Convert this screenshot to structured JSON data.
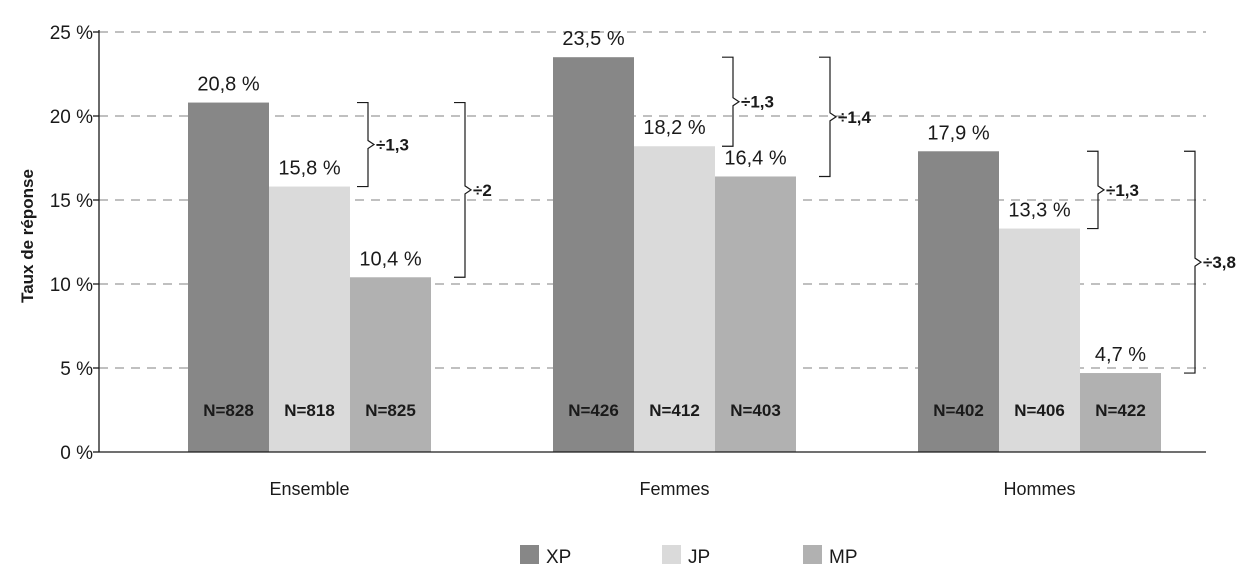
{
  "chart_data": {
    "type": "bar",
    "ylabel": "Taux de réponse",
    "ylim": [
      0,
      25
    ],
    "yticks": [
      0,
      5,
      10,
      15,
      20,
      25
    ],
    "ytick_labels": [
      "0 %",
      "5 %",
      "10 %",
      "15 %",
      "20 %",
      "25 %"
    ],
    "grid": true,
    "legend_position": "bottom",
    "categories": [
      "Ensemble",
      "Femmes",
      "Hommes"
    ],
    "series": [
      {
        "name": "XP",
        "color": "#878787",
        "values": [
          20.8,
          23.5,
          17.9
        ],
        "value_labels": [
          "20,8 %",
          "23,5 %",
          "17,9 %"
        ],
        "n_labels": [
          "N=828",
          "N=426",
          "N=402"
        ]
      },
      {
        "name": "JP",
        "color": "#dadada",
        "values": [
          15.8,
          18.2,
          13.3
        ],
        "value_labels": [
          "15,8 %",
          "18,2 %",
          "13,3 %"
        ],
        "n_labels": [
          "N=818",
          "N=412",
          "N=406"
        ]
      },
      {
        "name": "MP",
        "color": "#b1b1b1",
        "values": [
          10.4,
          16.4,
          4.7
        ],
        "value_labels": [
          "10,4 %",
          "16,4 %",
          "4,7 %"
        ],
        "n_labels": [
          "N=825",
          "N=403",
          "N=422"
        ]
      }
    ],
    "annotations": [
      {
        "category": 0,
        "from": 1,
        "to": 0,
        "label": "÷1,3"
      },
      {
        "category": 0,
        "from": 2,
        "to": 0,
        "label": "÷2"
      },
      {
        "category": 1,
        "from": 1,
        "to": 0,
        "label": "÷1,3"
      },
      {
        "category": 1,
        "from": 2,
        "to": 0,
        "label": "÷1,4"
      },
      {
        "category": 2,
        "from": 1,
        "to": 0,
        "label": "÷1,3"
      },
      {
        "category": 2,
        "from": 2,
        "to": 0,
        "label": "÷3,8"
      }
    ]
  }
}
